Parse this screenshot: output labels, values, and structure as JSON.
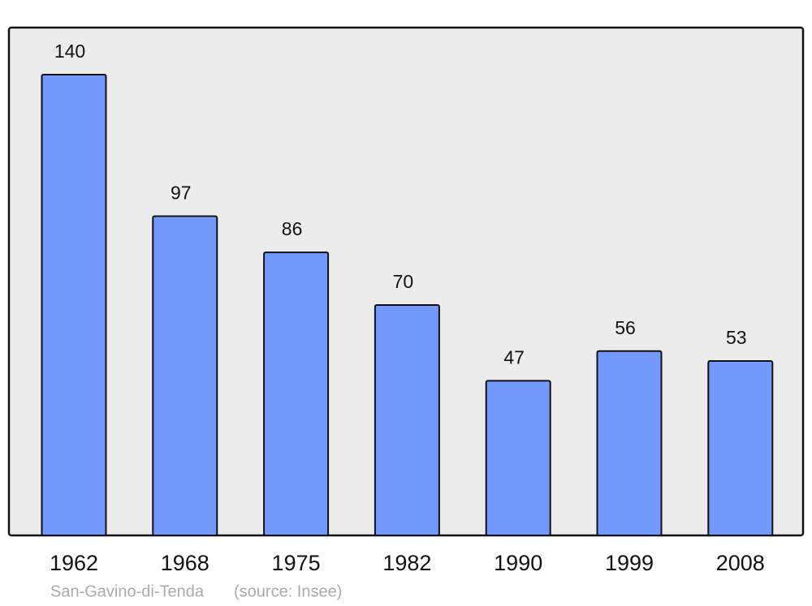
{
  "chart_data": {
    "type": "bar",
    "categories": [
      "1962",
      "1968",
      "1975",
      "1982",
      "1990",
      "1999",
      "2008"
    ],
    "values": [
      140,
      97,
      86,
      70,
      47,
      56,
      53
    ],
    "color": "#7399ff",
    "caption": "San-Gavino-di-Tenda",
    "source": "(source: Insee)"
  }
}
